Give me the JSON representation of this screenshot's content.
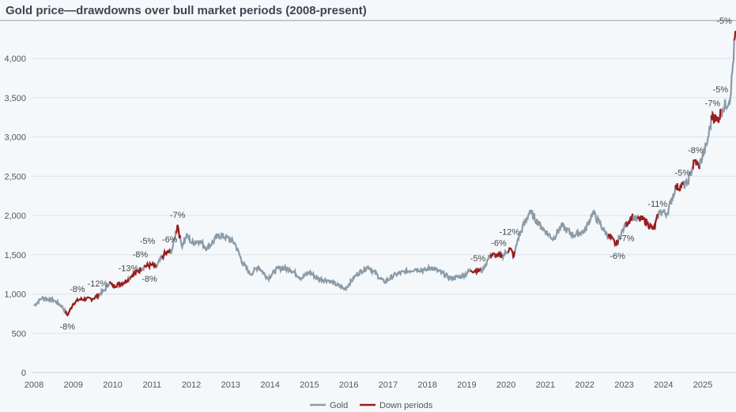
{
  "chart_data": {
    "type": "line",
    "title": "Gold price—drawdowns over bull market periods (2008-present)",
    "xlabel": "",
    "ylabel": "",
    "xlim": [
      2008,
      2025.83
    ],
    "ylim": [
      0,
      4400
    ],
    "grid": true,
    "legend_position": "bottom",
    "x_ticks": [
      "2008",
      "2009",
      "2010",
      "2011",
      "2012",
      "2013",
      "2014",
      "2015",
      "2016",
      "2017",
      "2018",
      "2019",
      "2020",
      "2021",
      "2022",
      "2023",
      "2024",
      "2025"
    ],
    "y_ticks": [
      {
        "v": 0,
        "label": "0"
      },
      {
        "v": 500,
        "label": "500"
      },
      {
        "v": 1000,
        "label": "1,000"
      },
      {
        "v": 1500,
        "label": "1,500"
      },
      {
        "v": 2000,
        "label": "2,000"
      },
      {
        "v": 2500,
        "label": "2,500"
      },
      {
        "v": 3000,
        "label": "3,000"
      },
      {
        "v": 3500,
        "label": "3,500"
      },
      {
        "v": 4000,
        "label": "4,000"
      }
    ],
    "series": [
      {
        "name": "Gold",
        "color": "#8a9ba8",
        "x": [
          2008.0,
          2008.2,
          2008.5,
          2008.7,
          2008.85,
          2009.0,
          2009.15,
          2009.5,
          2009.8,
          2009.92,
          2010.0,
          2010.3,
          2010.5,
          2010.8,
          2011.0,
          2011.1,
          2011.3,
          2011.5,
          2011.65,
          2011.75,
          2011.9,
          2012.0,
          2012.2,
          2012.4,
          2012.7,
          2012.9,
          2013.1,
          2013.3,
          2013.5,
          2013.7,
          2013.95,
          2014.2,
          2014.5,
          2014.8,
          2015.0,
          2015.2,
          2015.5,
          2015.9,
          2016.2,
          2016.5,
          2016.9,
          2017.2,
          2017.7,
          2017.95,
          2018.1,
          2018.6,
          2018.9,
          2019.1,
          2019.4,
          2019.6,
          2019.9,
          2020.1,
          2020.2,
          2020.3,
          2020.6,
          2020.9,
          2021.2,
          2021.4,
          2021.7,
          2022.0,
          2022.2,
          2022.5,
          2022.8,
          2023.0,
          2023.2,
          2023.3,
          2023.5,
          2023.75,
          2023.9,
          2024.1,
          2024.3,
          2024.6,
          2024.8,
          2024.9,
          2025.1,
          2025.25,
          2025.35,
          2025.5,
          2025.7,
          2025.83
        ],
        "y": [
          850,
          950,
          920,
          850,
          730,
          880,
          930,
          940,
          1050,
          1150,
          1100,
          1150,
          1240,
          1350,
          1370,
          1340,
          1500,
          1550,
          1880,
          1620,
          1750,
          1650,
          1680,
          1580,
          1750,
          1720,
          1650,
          1400,
          1250,
          1350,
          1200,
          1330,
          1320,
          1200,
          1280,
          1200,
          1170,
          1060,
          1250,
          1350,
          1150,
          1250,
          1320,
          1300,
          1340,
          1200,
          1230,
          1300,
          1300,
          1500,
          1480,
          1580,
          1480,
          1700,
          2050,
          1850,
          1700,
          1870,
          1750,
          1800,
          2040,
          1800,
          1630,
          1850,
          1990,
          1950,
          1950,
          1820,
          2050,
          2030,
          2350,
          2400,
          2700,
          2620,
          2900,
          3300,
          3200,
          3350,
          3500,
          4350
        ]
      },
      {
        "name": "Down periods",
        "color": "#9b1c1c"
      }
    ],
    "down_periods": [
      {
        "start": 2008.8,
        "end": 2009.0,
        "label": "-8%",
        "label_pos": "below"
      },
      {
        "start": 2009.0,
        "end": 2009.12,
        "label": "-8%",
        "label_pos": "above"
      },
      {
        "start": 2009.12,
        "end": 2009.65,
        "label": "-12%",
        "label_pos": "above"
      },
      {
        "start": 2009.92,
        "end": 2010.4,
        "label": "-13%",
        "label_pos": "above"
      },
      {
        "start": 2010.45,
        "end": 2010.72,
        "label": "-8%",
        "label_pos": "above"
      },
      {
        "start": 2010.8,
        "end": 2011.1,
        "label": "-8%",
        "label_pos": "below"
      },
      {
        "start": 2010.8,
        "end": 2010.9,
        "label": "-5%",
        "label_pos": "above"
      },
      {
        "start": 2011.25,
        "end": 2011.45,
        "label": "-6%",
        "label_pos": "above"
      },
      {
        "start": 2011.62,
        "end": 2011.72,
        "label": "-7%",
        "label_pos": "above"
      },
      {
        "start": 2019.1,
        "end": 2019.35,
        "label": "-5%",
        "label_pos": "above"
      },
      {
        "start": 2019.6,
        "end": 2019.9,
        "label": "-6%",
        "label_pos": "above"
      },
      {
        "start": 2020.05,
        "end": 2020.22,
        "label": "-12%",
        "label_pos": "above"
      },
      {
        "start": 2022.6,
        "end": 2022.85,
        "label": "-6%",
        "label_pos": "below"
      },
      {
        "start": 2023.05,
        "end": 2023.22,
        "label": "-7%",
        "label_pos": "below"
      },
      {
        "start": 2023.35,
        "end": 2023.85,
        "label": "-11%",
        "label_pos": "above"
      },
      {
        "start": 2024.3,
        "end": 2024.5,
        "label": "-5%",
        "label_pos": "above"
      },
      {
        "start": 2024.75,
        "end": 2024.92,
        "label": "-8%",
        "label_pos": "above"
      },
      {
        "start": 2025.22,
        "end": 2025.35,
        "label": "-7%",
        "label_pos": "above"
      },
      {
        "start": 2025.35,
        "end": 2025.45,
        "label": "-5%",
        "label_pos": "above"
      },
      {
        "start": 2025.8,
        "end": 2025.83,
        "label": "-5%",
        "label_pos": "above"
      }
    ]
  }
}
